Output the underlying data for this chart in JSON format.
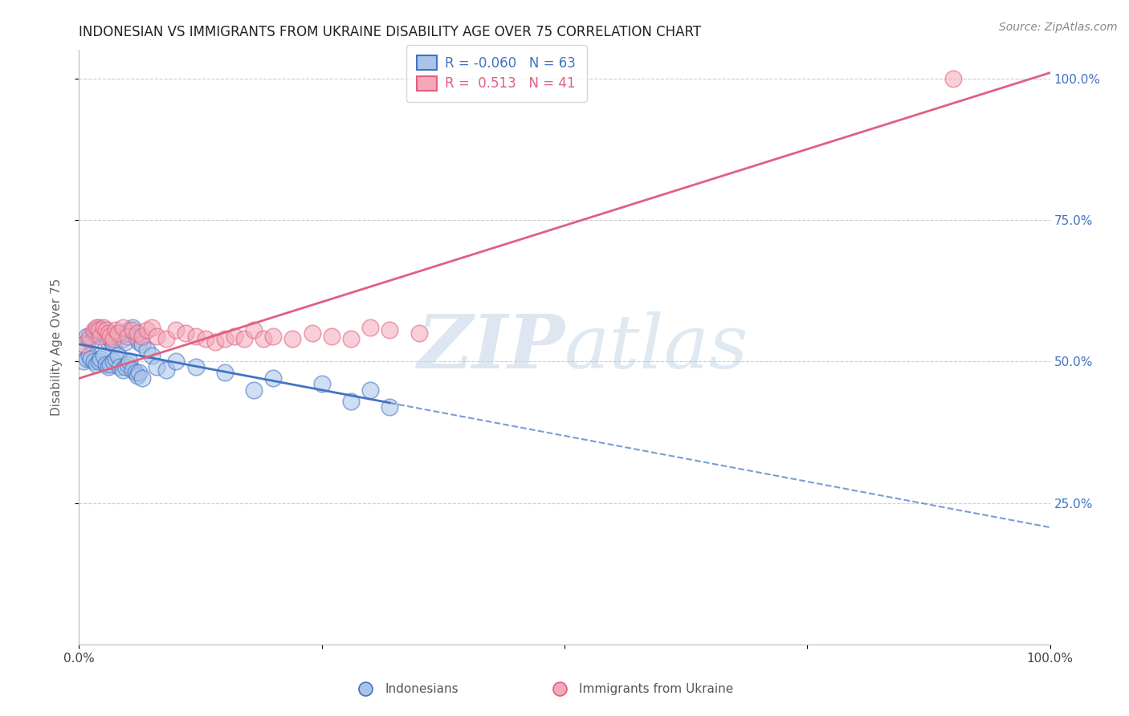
{
  "title": "INDONESIAN VS IMMIGRANTS FROM UKRAINE DISABILITY AGE OVER 75 CORRELATION CHART",
  "source": "Source: ZipAtlas.com",
  "ylabel": "Disability Age Over 75",
  "xlabel": "",
  "xlim": [
    0.0,
    1.0
  ],
  "ylim": [
    0.0,
    1.05
  ],
  "color_indonesian": "#a8c4e8",
  "color_ukraine": "#f4a8b8",
  "line_color_indonesian": "#4472c4",
  "line_color_ukraine": "#e06080",
  "watermark_zip": "ZIP",
  "watermark_atlas": "atlas",
  "legend_label1": "Indonesians",
  "legend_label2": "Immigrants from Ukraine",
  "R_indonesian": -0.06,
  "N_indonesian": 63,
  "R_ukraine": 0.513,
  "N_ukraine": 41,
  "background_color": "#ffffff",
  "grid_color": "#cccccc",
  "title_fontsize": 12,
  "axis_label_fontsize": 11,
  "tick_fontsize": 11,
  "legend_fontsize": 12,
  "indonesian_x": [
    0.005,
    0.008,
    0.01,
    0.012,
    0.015,
    0.018,
    0.02,
    0.022,
    0.025,
    0.028,
    0.03,
    0.032,
    0.035,
    0.038,
    0.04,
    0.042,
    0.045,
    0.048,
    0.05,
    0.052,
    0.055,
    0.058,
    0.06,
    0.062,
    0.065,
    0.005,
    0.008,
    0.01,
    0.012,
    0.015,
    0.018,
    0.02,
    0.022,
    0.025,
    0.028,
    0.03,
    0.032,
    0.035,
    0.038,
    0.04,
    0.042,
    0.045,
    0.048,
    0.05,
    0.052,
    0.055,
    0.058,
    0.06,
    0.062,
    0.065,
    0.07,
    0.075,
    0.08,
    0.09,
    0.1,
    0.12,
    0.15,
    0.18,
    0.2,
    0.25,
    0.28,
    0.3,
    0.32
  ],
  "indonesian_y": [
    0.53,
    0.545,
    0.54,
    0.535,
    0.55,
    0.555,
    0.56,
    0.555,
    0.55,
    0.545,
    0.535,
    0.54,
    0.53,
    0.545,
    0.55,
    0.545,
    0.54,
    0.535,
    0.55,
    0.555,
    0.56,
    0.545,
    0.54,
    0.535,
    0.53,
    0.5,
    0.505,
    0.51,
    0.505,
    0.5,
    0.495,
    0.5,
    0.505,
    0.51,
    0.495,
    0.49,
    0.495,
    0.5,
    0.505,
    0.51,
    0.49,
    0.485,
    0.49,
    0.495,
    0.5,
    0.485,
    0.48,
    0.475,
    0.48,
    0.47,
    0.52,
    0.51,
    0.49,
    0.485,
    0.5,
    0.49,
    0.48,
    0.45,
    0.47,
    0.46,
    0.43,
    0.45,
    0.42
  ],
  "ukraine_x": [
    0.005,
    0.01,
    0.015,
    0.018,
    0.02,
    0.022,
    0.025,
    0.028,
    0.03,
    0.032,
    0.035,
    0.038,
    0.04,
    0.045,
    0.05,
    0.055,
    0.06,
    0.065,
    0.07,
    0.075,
    0.08,
    0.09,
    0.1,
    0.11,
    0.12,
    0.13,
    0.14,
    0.15,
    0.16,
    0.17,
    0.18,
    0.19,
    0.2,
    0.22,
    0.24,
    0.26,
    0.28,
    0.3,
    0.32,
    0.35,
    0.9
  ],
  "ukraine_y": [
    0.53,
    0.545,
    0.555,
    0.56,
    0.555,
    0.545,
    0.56,
    0.555,
    0.55,
    0.545,
    0.54,
    0.555,
    0.55,
    0.56,
    0.545,
    0.555,
    0.55,
    0.545,
    0.555,
    0.56,
    0.545,
    0.54,
    0.555,
    0.55,
    0.545,
    0.54,
    0.535,
    0.54,
    0.545,
    0.54,
    0.555,
    0.54,
    0.545,
    0.54,
    0.55,
    0.545,
    0.54,
    0.56,
    0.555,
    0.55,
    1.0
  ]
}
